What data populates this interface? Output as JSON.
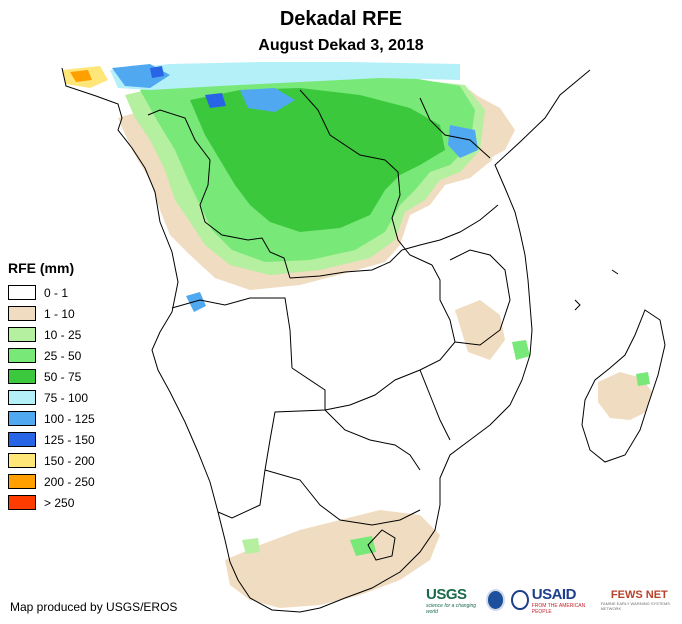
{
  "title": "Dekadal RFE",
  "subtitle": "August Dekad 3, 2018",
  "legend": {
    "title": "RFE (mm)",
    "items": [
      {
        "label": "0 - 1",
        "color": "#ffffff"
      },
      {
        "label": "1 - 10",
        "color": "#f0dcc0"
      },
      {
        "label": "10 - 25",
        "color": "#b4f0a0"
      },
      {
        "label": "25 - 50",
        "color": "#78e878"
      },
      {
        "label": "50 - 75",
        "color": "#3cc83c"
      },
      {
        "label": "75 - 100",
        "color": "#b4f0f8"
      },
      {
        "label": "100 - 125",
        "color": "#50a8f0"
      },
      {
        "label": "125 - 150",
        "color": "#2864e6"
      },
      {
        "label": "150 - 200",
        "color": "#ffe678"
      },
      {
        "label": "200 - 250",
        "color": "#ffa000"
      },
      {
        "label": "> 250",
        "color": "#ff3c00"
      }
    ]
  },
  "credit": "Map produced by USGS/EROS",
  "logos": {
    "usgs": "USGS",
    "usgs_tagline": "science for a changing world",
    "usaid": "USAID",
    "usaid_tagline": "FROM THE AMERICAN PEOPLE",
    "fews": "FEWS NET",
    "fews_tagline": "FAMINE EARLY WARNING SYSTEMS NETWORK"
  }
}
